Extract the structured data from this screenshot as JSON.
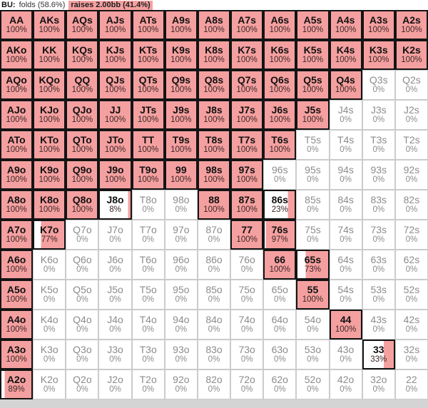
{
  "header": {
    "position_label": "BU:",
    "fold_label": "folds (58.6%)",
    "raise_label": "raises 2.00bb (41.4%)"
  },
  "colors": {
    "raise_fill": "#f5a0a0",
    "empty_fill": "#ffffff",
    "filled_border": "#141414",
    "zero_border": "#cbcbcb",
    "zero_text": "#8c8c8c"
  },
  "grid": {
    "rows": [
      [
        {
          "hand": "AA",
          "pct": 100
        },
        {
          "hand": "AKs",
          "pct": 100
        },
        {
          "hand": "AQs",
          "pct": 100
        },
        {
          "hand": "AJs",
          "pct": 100
        },
        {
          "hand": "ATs",
          "pct": 100
        },
        {
          "hand": "A9s",
          "pct": 100
        },
        {
          "hand": "A8s",
          "pct": 100
        },
        {
          "hand": "A7s",
          "pct": 100
        },
        {
          "hand": "A6s",
          "pct": 100
        },
        {
          "hand": "A5s",
          "pct": 100
        },
        {
          "hand": "A4s",
          "pct": 100
        },
        {
          "hand": "A3s",
          "pct": 100
        },
        {
          "hand": "A2s",
          "pct": 100
        }
      ],
      [
        {
          "hand": "AKo",
          "pct": 100
        },
        {
          "hand": "KK",
          "pct": 100
        },
        {
          "hand": "KQs",
          "pct": 100
        },
        {
          "hand": "KJs",
          "pct": 100
        },
        {
          "hand": "KTs",
          "pct": 100
        },
        {
          "hand": "K9s",
          "pct": 100
        },
        {
          "hand": "K8s",
          "pct": 100
        },
        {
          "hand": "K7s",
          "pct": 100
        },
        {
          "hand": "K6s",
          "pct": 100
        },
        {
          "hand": "K5s",
          "pct": 100
        },
        {
          "hand": "K4s",
          "pct": 100
        },
        {
          "hand": "K3s",
          "pct": 100
        },
        {
          "hand": "K2s",
          "pct": 100
        }
      ],
      [
        {
          "hand": "AQo",
          "pct": 100
        },
        {
          "hand": "KQo",
          "pct": 100
        },
        {
          "hand": "QQ",
          "pct": 100
        },
        {
          "hand": "QJs",
          "pct": 100
        },
        {
          "hand": "QTs",
          "pct": 100
        },
        {
          "hand": "Q9s",
          "pct": 100
        },
        {
          "hand": "Q8s",
          "pct": 100
        },
        {
          "hand": "Q7s",
          "pct": 100
        },
        {
          "hand": "Q6s",
          "pct": 100
        },
        {
          "hand": "Q5s",
          "pct": 100
        },
        {
          "hand": "Q4s",
          "pct": 100
        },
        {
          "hand": "Q3s",
          "pct": 0
        },
        {
          "hand": "Q2s",
          "pct": 0
        }
      ],
      [
        {
          "hand": "AJo",
          "pct": 100
        },
        {
          "hand": "KJo",
          "pct": 100
        },
        {
          "hand": "QJo",
          "pct": 100
        },
        {
          "hand": "JJ",
          "pct": 100
        },
        {
          "hand": "JTs",
          "pct": 100
        },
        {
          "hand": "J9s",
          "pct": 100
        },
        {
          "hand": "J8s",
          "pct": 100
        },
        {
          "hand": "J7s",
          "pct": 100
        },
        {
          "hand": "J6s",
          "pct": 100
        },
        {
          "hand": "J5s",
          "pct": 100
        },
        {
          "hand": "J4s",
          "pct": 0
        },
        {
          "hand": "J3s",
          "pct": 0
        },
        {
          "hand": "J2s",
          "pct": 0
        }
      ],
      [
        {
          "hand": "ATo",
          "pct": 100
        },
        {
          "hand": "KTo",
          "pct": 100
        },
        {
          "hand": "QTo",
          "pct": 100
        },
        {
          "hand": "JTo",
          "pct": 100
        },
        {
          "hand": "TT",
          "pct": 100
        },
        {
          "hand": "T9s",
          "pct": 100
        },
        {
          "hand": "T8s",
          "pct": 100
        },
        {
          "hand": "T7s",
          "pct": 100
        },
        {
          "hand": "T6s",
          "pct": 100
        },
        {
          "hand": "T5s",
          "pct": 0
        },
        {
          "hand": "T4s",
          "pct": 0
        },
        {
          "hand": "T3s",
          "pct": 0
        },
        {
          "hand": "T2s",
          "pct": 0
        }
      ],
      [
        {
          "hand": "A9o",
          "pct": 100
        },
        {
          "hand": "K9o",
          "pct": 100
        },
        {
          "hand": "Q9o",
          "pct": 100
        },
        {
          "hand": "J9o",
          "pct": 100
        },
        {
          "hand": "T9o",
          "pct": 100
        },
        {
          "hand": "99",
          "pct": 100
        },
        {
          "hand": "98s",
          "pct": 100
        },
        {
          "hand": "97s",
          "pct": 100
        },
        {
          "hand": "96s",
          "pct": 0
        },
        {
          "hand": "95s",
          "pct": 0
        },
        {
          "hand": "94s",
          "pct": 0
        },
        {
          "hand": "93s",
          "pct": 0
        },
        {
          "hand": "92s",
          "pct": 0
        }
      ],
      [
        {
          "hand": "A8o",
          "pct": 100
        },
        {
          "hand": "K8o",
          "pct": 100
        },
        {
          "hand": "Q8o",
          "pct": 100
        },
        {
          "hand": "J8o",
          "pct": 8
        },
        {
          "hand": "T8o",
          "pct": 0
        },
        {
          "hand": "98o",
          "pct": 0
        },
        {
          "hand": "88",
          "pct": 100
        },
        {
          "hand": "87s",
          "pct": 100
        },
        {
          "hand": "86s",
          "pct": 23
        },
        {
          "hand": "85s",
          "pct": 0
        },
        {
          "hand": "84s",
          "pct": 0
        },
        {
          "hand": "83s",
          "pct": 0
        },
        {
          "hand": "82s",
          "pct": 0
        }
      ],
      [
        {
          "hand": "A7o",
          "pct": 100
        },
        {
          "hand": "K7o",
          "pct": 77
        },
        {
          "hand": "Q7o",
          "pct": 0
        },
        {
          "hand": "J7o",
          "pct": 0
        },
        {
          "hand": "T7o",
          "pct": 0
        },
        {
          "hand": "97o",
          "pct": 0
        },
        {
          "hand": "87o",
          "pct": 0
        },
        {
          "hand": "77",
          "pct": 100
        },
        {
          "hand": "76s",
          "pct": 97
        },
        {
          "hand": "75s",
          "pct": 0
        },
        {
          "hand": "74s",
          "pct": 0
        },
        {
          "hand": "73s",
          "pct": 0
        },
        {
          "hand": "72s",
          "pct": 0
        }
      ],
      [
        {
          "hand": "A6o",
          "pct": 100
        },
        {
          "hand": "K6o",
          "pct": 0
        },
        {
          "hand": "Q6o",
          "pct": 0
        },
        {
          "hand": "J6o",
          "pct": 0
        },
        {
          "hand": "T6o",
          "pct": 0
        },
        {
          "hand": "96o",
          "pct": 0
        },
        {
          "hand": "86o",
          "pct": 0
        },
        {
          "hand": "76o",
          "pct": 0
        },
        {
          "hand": "66",
          "pct": 100
        },
        {
          "hand": "65s",
          "pct": 73
        },
        {
          "hand": "64s",
          "pct": 0
        },
        {
          "hand": "63s",
          "pct": 0
        },
        {
          "hand": "62s",
          "pct": 0
        }
      ],
      [
        {
          "hand": "A5o",
          "pct": 100
        },
        {
          "hand": "K5o",
          "pct": 0
        },
        {
          "hand": "Q5o",
          "pct": 0
        },
        {
          "hand": "J5o",
          "pct": 0
        },
        {
          "hand": "T5o",
          "pct": 0
        },
        {
          "hand": "95o",
          "pct": 0
        },
        {
          "hand": "85o",
          "pct": 0
        },
        {
          "hand": "75o",
          "pct": 0
        },
        {
          "hand": "65o",
          "pct": 0
        },
        {
          "hand": "55",
          "pct": 100
        },
        {
          "hand": "54s",
          "pct": 0
        },
        {
          "hand": "53s",
          "pct": 0
        },
        {
          "hand": "52s",
          "pct": 0
        }
      ],
      [
        {
          "hand": "A4o",
          "pct": 100
        },
        {
          "hand": "K4o",
          "pct": 0
        },
        {
          "hand": "Q4o",
          "pct": 0
        },
        {
          "hand": "J4o",
          "pct": 0
        },
        {
          "hand": "T4o",
          "pct": 0
        },
        {
          "hand": "94o",
          "pct": 0
        },
        {
          "hand": "84o",
          "pct": 0
        },
        {
          "hand": "74o",
          "pct": 0
        },
        {
          "hand": "64o",
          "pct": 0
        },
        {
          "hand": "54o",
          "pct": 0
        },
        {
          "hand": "44",
          "pct": 100
        },
        {
          "hand": "43s",
          "pct": 0
        },
        {
          "hand": "42s",
          "pct": 0
        }
      ],
      [
        {
          "hand": "A3o",
          "pct": 100
        },
        {
          "hand": "K3o",
          "pct": 0
        },
        {
          "hand": "Q3o",
          "pct": 0
        },
        {
          "hand": "J3o",
          "pct": 0
        },
        {
          "hand": "T3o",
          "pct": 0
        },
        {
          "hand": "93o",
          "pct": 0
        },
        {
          "hand": "83o",
          "pct": 0
        },
        {
          "hand": "73o",
          "pct": 0
        },
        {
          "hand": "63o",
          "pct": 0
        },
        {
          "hand": "53o",
          "pct": 0
        },
        {
          "hand": "43o",
          "pct": 0
        },
        {
          "hand": "33",
          "pct": 33
        },
        {
          "hand": "32s",
          "pct": 0
        }
      ],
      [
        {
          "hand": "A2o",
          "pct": 89
        },
        {
          "hand": "K2o",
          "pct": 0
        },
        {
          "hand": "Q2o",
          "pct": 0
        },
        {
          "hand": "J2o",
          "pct": 0
        },
        {
          "hand": "T2o",
          "pct": 0
        },
        {
          "hand": "92o",
          "pct": 0
        },
        {
          "hand": "82o",
          "pct": 0
        },
        {
          "hand": "72o",
          "pct": 0
        },
        {
          "hand": "62o",
          "pct": 0
        },
        {
          "hand": "52o",
          "pct": 0
        },
        {
          "hand": "42o",
          "pct": 0
        },
        {
          "hand": "32o",
          "pct": 0
        },
        {
          "hand": "22",
          "pct": 0
        }
      ]
    ]
  }
}
